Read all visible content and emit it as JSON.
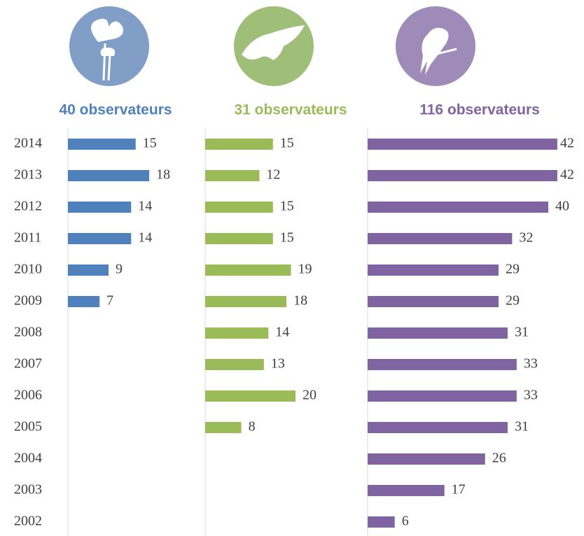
{
  "chart_data": [
    {
      "type": "bar",
      "title": "40 observateurs",
      "color": "#4f81bd",
      "categories": [
        "2014",
        "2013",
        "2012",
        "2011",
        "2010",
        "2009",
        "2008",
        "2007",
        "2006",
        "2005",
        "2004",
        "2003",
        "2002"
      ],
      "values": [
        15,
        18,
        14,
        14,
        9,
        7,
        null,
        null,
        null,
        null,
        null,
        null,
        null
      ]
    },
    {
      "type": "bar",
      "title": "31 observateurs",
      "color": "#9bbb59",
      "values": [
        15,
        12,
        15,
        15,
        19,
        18,
        14,
        13,
        20,
        8,
        null,
        null,
        null
      ]
    },
    {
      "type": "bar",
      "title": "116 observateurs",
      "color": "#8064a2",
      "values": [
        42,
        42,
        40,
        32,
        29,
        29,
        31,
        33,
        33,
        31,
        26,
        17,
        6
      ]
    }
  ]
}
